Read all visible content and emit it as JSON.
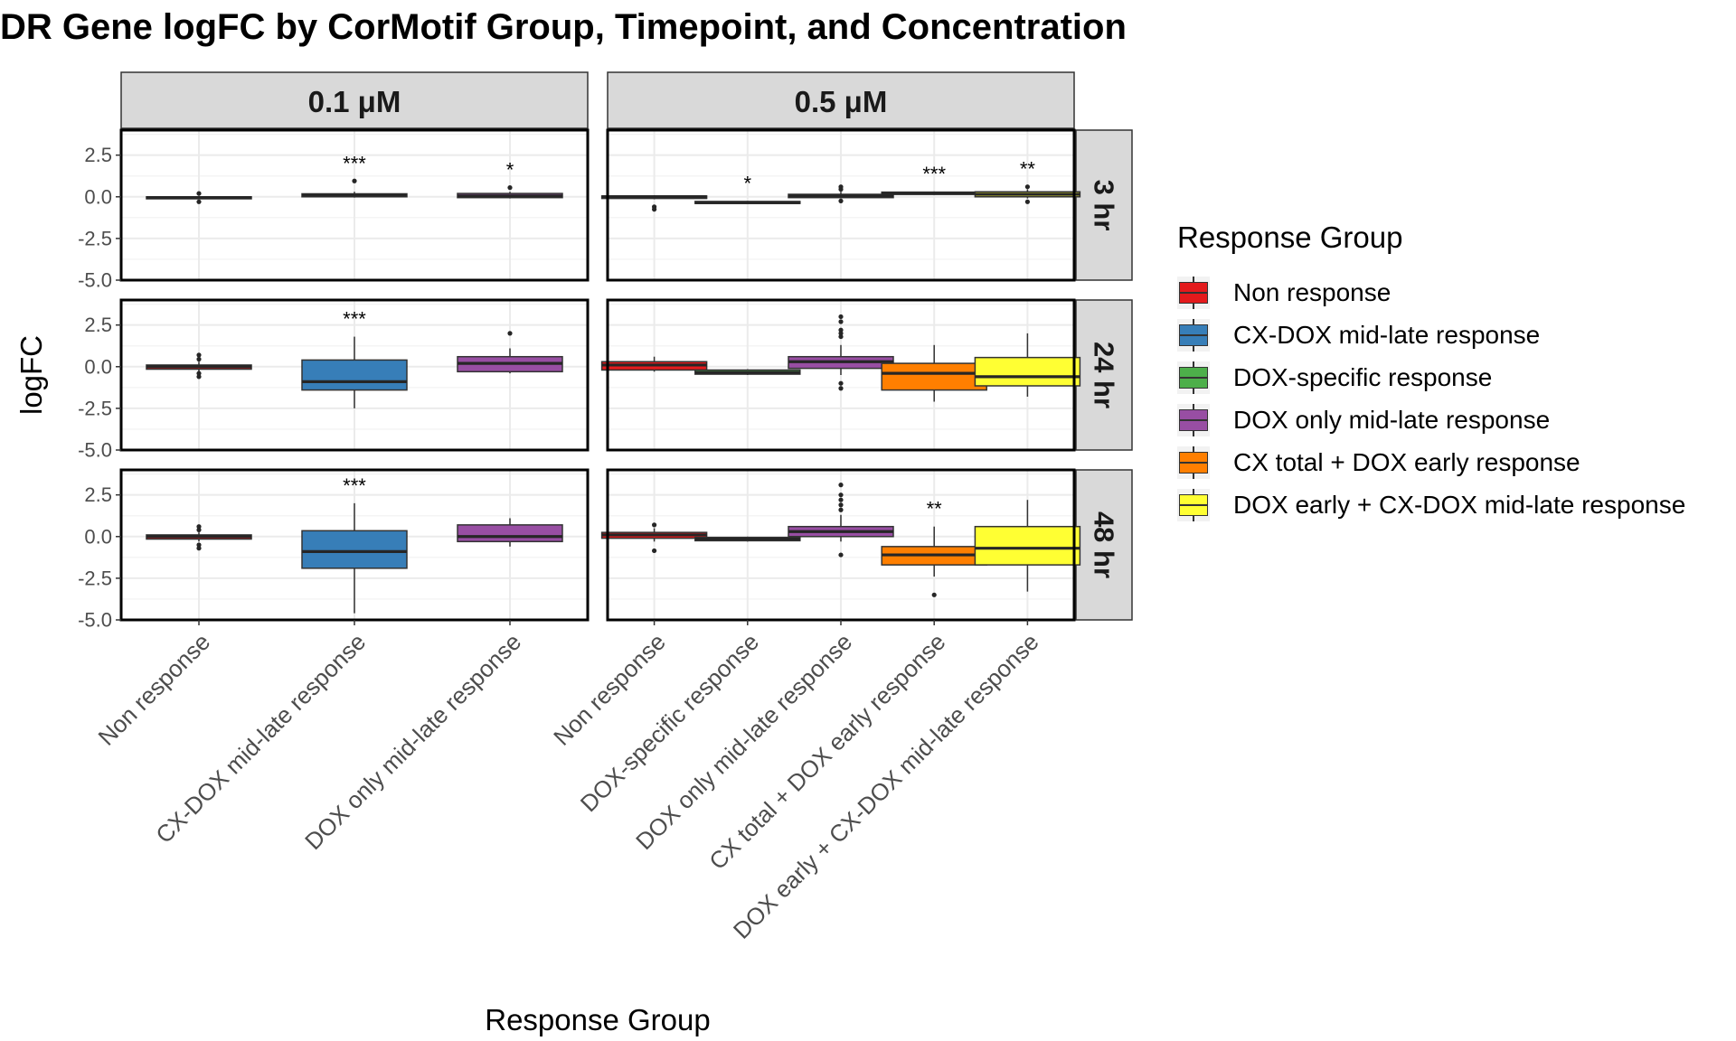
{
  "title": "DR Gene logFC by CorMotif Group, Timepoint, and Concentration",
  "colors": {
    "Non response": "#E41A1C",
    "CX-DOX mid-late response": "#377EB8",
    "DOX-specific response": "#4DAF4A",
    "DOX only mid-late response": "#984EA3",
    "CX total + DOX early response": "#FF7F00",
    "DOX early + CX-DOX mid-late response": "#FFFF33"
  },
  "legend": {
    "title": "Response Group",
    "items": [
      {
        "label": "Non response",
        "color": "#E41A1C"
      },
      {
        "label": "CX-DOX mid-late response",
        "color": "#377EB8"
      },
      {
        "label": "DOX-specific response",
        "color": "#4DAF4A"
      },
      {
        "label": "DOX only mid-late response",
        "color": "#984EA3"
      },
      {
        "label": "CX total + DOX early response",
        "color": "#FF7F00"
      },
      {
        "label": "DOX early + CX-DOX mid-late response",
        "color": "#FFFF33"
      }
    ]
  },
  "chart_data": {
    "type": "boxplot",
    "title": "DR Gene logFC by CorMotif Group, Timepoint, and Concentration",
    "xlabel": "Response Group",
    "ylabel": "logFC",
    "ylim": [
      -5.0,
      4.0
    ],
    "yticks": [
      "2.5",
      "0.0",
      "-2.5",
      "-5.0"
    ],
    "ytick_values": [
      2.5,
      0.0,
      -2.5,
      -5.0
    ],
    "grid": true,
    "legend_position": "right",
    "columns": [
      {
        "label": "0.1 μM",
        "groups": [
          "Non response",
          "CX-DOX mid-late response",
          "DOX only mid-late response"
        ]
      },
      {
        "label": "0.5 μM",
        "groups": [
          "Non response",
          "DOX-specific response",
          "DOX only mid-late response",
          "CX total + DOX early response",
          "DOX early + CX-DOX mid-late response"
        ]
      }
    ],
    "rows": [
      "3 hr",
      "24 hr",
      "48 hr"
    ],
    "panels": [
      {
        "row": "3 hr",
        "column": "0.1 μM",
        "boxes": [
          {
            "group": "Non response",
            "q1": -0.12,
            "median": -0.05,
            "q3": 0.0,
            "whisker_low": -0.15,
            "whisker_high": 0.05,
            "outliers": [
              0.2,
              -0.3
            ],
            "sig": ""
          },
          {
            "group": "CX-DOX mid-late response",
            "q1": 0.0,
            "median": 0.1,
            "q3": 0.18,
            "whisker_low": -0.05,
            "whisker_high": 0.3,
            "outliers": [
              0.95
            ],
            "sig": "***"
          },
          {
            "group": "DOX only mid-late response",
            "q1": -0.05,
            "median": 0.05,
            "q3": 0.2,
            "whisker_low": -0.1,
            "whisker_high": 0.3,
            "outliers": [
              0.55
            ],
            "sig": "*"
          }
        ]
      },
      {
        "row": "3 hr",
        "column": "0.5 μM",
        "boxes": [
          {
            "group": "Non response",
            "q1": -0.1,
            "median": 0.0,
            "q3": 0.05,
            "whisker_low": -0.15,
            "whisker_high": 0.1,
            "outliers": [
              -0.6,
              -0.75
            ],
            "sig": ""
          },
          {
            "group": "DOX-specific response",
            "q1": -0.4,
            "median": -0.35,
            "q3": -0.28,
            "whisker_low": -0.42,
            "whisker_high": -0.25,
            "outliers": [],
            "sig": "*"
          },
          {
            "group": "DOX only mid-late response",
            "q1": -0.05,
            "median": 0.05,
            "q3": 0.15,
            "whisker_low": -0.1,
            "whisker_high": 0.3,
            "outliers": [
              0.45,
              0.6,
              -0.25
            ],
            "sig": ""
          },
          {
            "group": "CX total + DOX early response",
            "q1": 0.15,
            "median": 0.2,
            "q3": 0.28,
            "whisker_low": 0.12,
            "whisker_high": 0.32,
            "outliers": [],
            "sig": "***"
          },
          {
            "group": "DOX early + CX-DOX mid-late response",
            "q1": 0.0,
            "median": 0.15,
            "q3": 0.3,
            "whisker_low": -0.1,
            "whisker_high": 0.45,
            "outliers": [
              0.6,
              -0.3
            ],
            "sig": "**"
          }
        ]
      },
      {
        "row": "24 hr",
        "column": "0.1 μM",
        "boxes": [
          {
            "group": "Non response",
            "q1": -0.15,
            "median": 0.0,
            "q3": 0.1,
            "whisker_low": -0.3,
            "whisker_high": 0.3,
            "outliers": [
              0.7,
              0.45,
              -0.4,
              -0.6
            ],
            "sig": ""
          },
          {
            "group": "CX-DOX mid-late response",
            "q1": -1.4,
            "median": -0.9,
            "q3": 0.4,
            "whisker_low": -2.5,
            "whisker_high": 1.8,
            "outliers": [],
            "sig": "***"
          },
          {
            "group": "DOX only mid-late response",
            "q1": -0.3,
            "median": 0.2,
            "q3": 0.6,
            "whisker_low": -0.4,
            "whisker_high": 1.1,
            "outliers": [
              2.0
            ],
            "sig": ""
          }
        ]
      },
      {
        "row": "24 hr",
        "column": "0.5 μM",
        "boxes": [
          {
            "group": "Non response",
            "q1": -0.2,
            "median": 0.1,
            "q3": 0.3,
            "whisker_low": -0.3,
            "whisker_high": 0.6,
            "outliers": [],
            "sig": ""
          },
          {
            "group": "DOX-specific response",
            "q1": -0.45,
            "median": -0.35,
            "q3": -0.2,
            "whisker_low": -0.5,
            "whisker_high": -0.15,
            "outliers": [],
            "sig": ""
          },
          {
            "group": "DOX only mid-late response",
            "q1": -0.1,
            "median": 0.3,
            "q3": 0.6,
            "whisker_low": -0.5,
            "whisker_high": 1.3,
            "outliers": [
              3.0,
              2.7,
              2.2,
              2.0,
              1.8,
              -1.0,
              -1.3
            ],
            "sig": ""
          },
          {
            "group": "CX total + DOX early response",
            "q1": -1.4,
            "median": -0.4,
            "q3": 0.2,
            "whisker_low": -2.1,
            "whisker_high": 1.3,
            "outliers": [],
            "sig": ""
          },
          {
            "group": "DOX early + CX-DOX mid-late response",
            "q1": -1.15,
            "median": -0.6,
            "q3": 0.55,
            "whisker_low": -1.8,
            "whisker_high": 2.0,
            "outliers": [],
            "sig": ""
          }
        ]
      },
      {
        "row": "48 hr",
        "column": "0.1 μM",
        "boxes": [
          {
            "group": "Non response",
            "q1": -0.15,
            "median": 0.0,
            "q3": 0.1,
            "whisker_low": -0.3,
            "whisker_high": 0.25,
            "outliers": [
              0.6,
              0.4,
              -0.5,
              -0.7
            ],
            "sig": ""
          },
          {
            "group": "CX-DOX mid-late response",
            "q1": -1.9,
            "median": -0.9,
            "q3": 0.35,
            "whisker_low": -4.6,
            "whisker_high": 2.0,
            "outliers": [],
            "sig": "***"
          },
          {
            "group": "DOX only mid-late response",
            "q1": -0.3,
            "median": 0.0,
            "q3": 0.7,
            "whisker_low": -0.6,
            "whisker_high": 1.1,
            "outliers": [],
            "sig": ""
          }
        ]
      },
      {
        "row": "48 hr",
        "column": "0.5 μM",
        "boxes": [
          {
            "group": "Non response",
            "q1": -0.1,
            "median": 0.1,
            "q3": 0.25,
            "whisker_low": -0.3,
            "whisker_high": 0.5,
            "outliers": [
              0.7,
              -0.85
            ],
            "sig": ""
          },
          {
            "group": "DOX-specific response",
            "q1": -0.25,
            "median": -0.15,
            "q3": -0.05,
            "whisker_low": -0.3,
            "whisker_high": 0.0,
            "outliers": [],
            "sig": ""
          },
          {
            "group": "DOX only mid-late response",
            "q1": 0.0,
            "median": 0.3,
            "q3": 0.6,
            "whisker_low": -0.3,
            "whisker_high": 1.3,
            "outliers": [
              3.1,
              2.5,
              2.2,
              1.9,
              1.6,
              -1.1
            ],
            "sig": ""
          },
          {
            "group": "CX total + DOX early response",
            "q1": -1.7,
            "median": -1.1,
            "q3": -0.6,
            "whisker_low": -2.4,
            "whisker_high": 0.6,
            "outliers": [
              -3.5
            ],
            "sig": "**"
          },
          {
            "group": "DOX early + CX-DOX mid-late response",
            "q1": -1.7,
            "median": -0.7,
            "q3": 0.6,
            "whisker_low": -3.3,
            "whisker_high": 2.2,
            "outliers": [],
            "sig": ""
          }
        ]
      }
    ]
  }
}
